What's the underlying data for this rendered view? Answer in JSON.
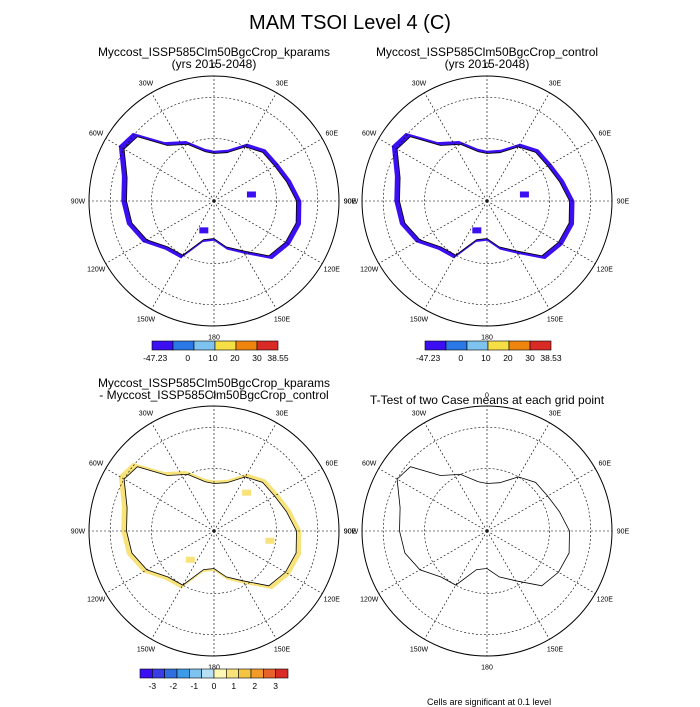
{
  "figure": {
    "title": "MAM TSOI Level 4 (C)",
    "footnote": "Cells are significant at 0.1 level"
  },
  "chart_data": [
    {
      "type": "heatmap",
      "projection": "south-polar-stereographic",
      "title": "Myccost_ISSP585Clm50BgcCrop_kparams",
      "subtitle": "(yrs 2015-2048)",
      "lon_labels": [
        "0",
        "30E",
        "60E",
        "90E",
        "120E",
        "150E",
        "180",
        "150W",
        "120W",
        "90W",
        "60W",
        "30W"
      ],
      "colorbar": {
        "colors": [
          "#3b0ff2",
          "#2a78e6",
          "#7ec3f0",
          "#f6df45",
          "#f0850e",
          "#d92a25"
        ],
        "labels": [
          "-47.23",
          "0",
          "10",
          "20",
          "30",
          "38.55"
        ]
      }
    },
    {
      "type": "heatmap",
      "projection": "south-polar-stereographic",
      "title": "Myccost_ISSP585Clm50BgcCrop_control",
      "subtitle": "(yrs 2015-2048)",
      "lon_labels": [
        "0",
        "30E",
        "60E",
        "90E",
        "120E",
        "150E",
        "180",
        "150W",
        "120W",
        "90W",
        "60W",
        "30W"
      ],
      "colorbar": {
        "colors": [
          "#3b0ff2",
          "#2a78e6",
          "#7ec3f0",
          "#f6df45",
          "#f0850e",
          "#d92a25"
        ],
        "labels": [
          "-47.23",
          "0",
          "10",
          "20",
          "30",
          "38.53"
        ]
      }
    },
    {
      "type": "heatmap",
      "projection": "south-polar-stereographic",
      "title": "Myccost_ISSP585Clm50BgcCrop_kparams",
      "subtitle": "- Myccost_ISSP585Clm50BgcCrop_control",
      "lon_labels": [
        "0",
        "30E",
        "60E",
        "90E",
        "120E",
        "150E",
        "180",
        "150W",
        "120W",
        "90W",
        "60W",
        "30W"
      ],
      "colorbar": {
        "colors": [
          "#3b0ff2",
          "#3a3ce6",
          "#2f6fe0",
          "#3d9be8",
          "#7ec3f0",
          "#b8e0f5",
          "#fff7b5",
          "#f8e27a",
          "#f4c542",
          "#f29a2a",
          "#e8602a",
          "#d92a25"
        ],
        "labels": [
          "-3",
          "-2",
          "-1",
          "0",
          "1",
          "2",
          "3"
        ]
      }
    },
    {
      "type": "heatmap",
      "projection": "south-polar-stereographic",
      "title": "T-Test of two Case means at each grid point",
      "subtitle": "",
      "lon_labels": [
        "0",
        "30E",
        "60E",
        "90E",
        "120E",
        "150E",
        "180",
        "150W",
        "120W",
        "90W",
        "60W",
        "30W"
      ]
    }
  ]
}
